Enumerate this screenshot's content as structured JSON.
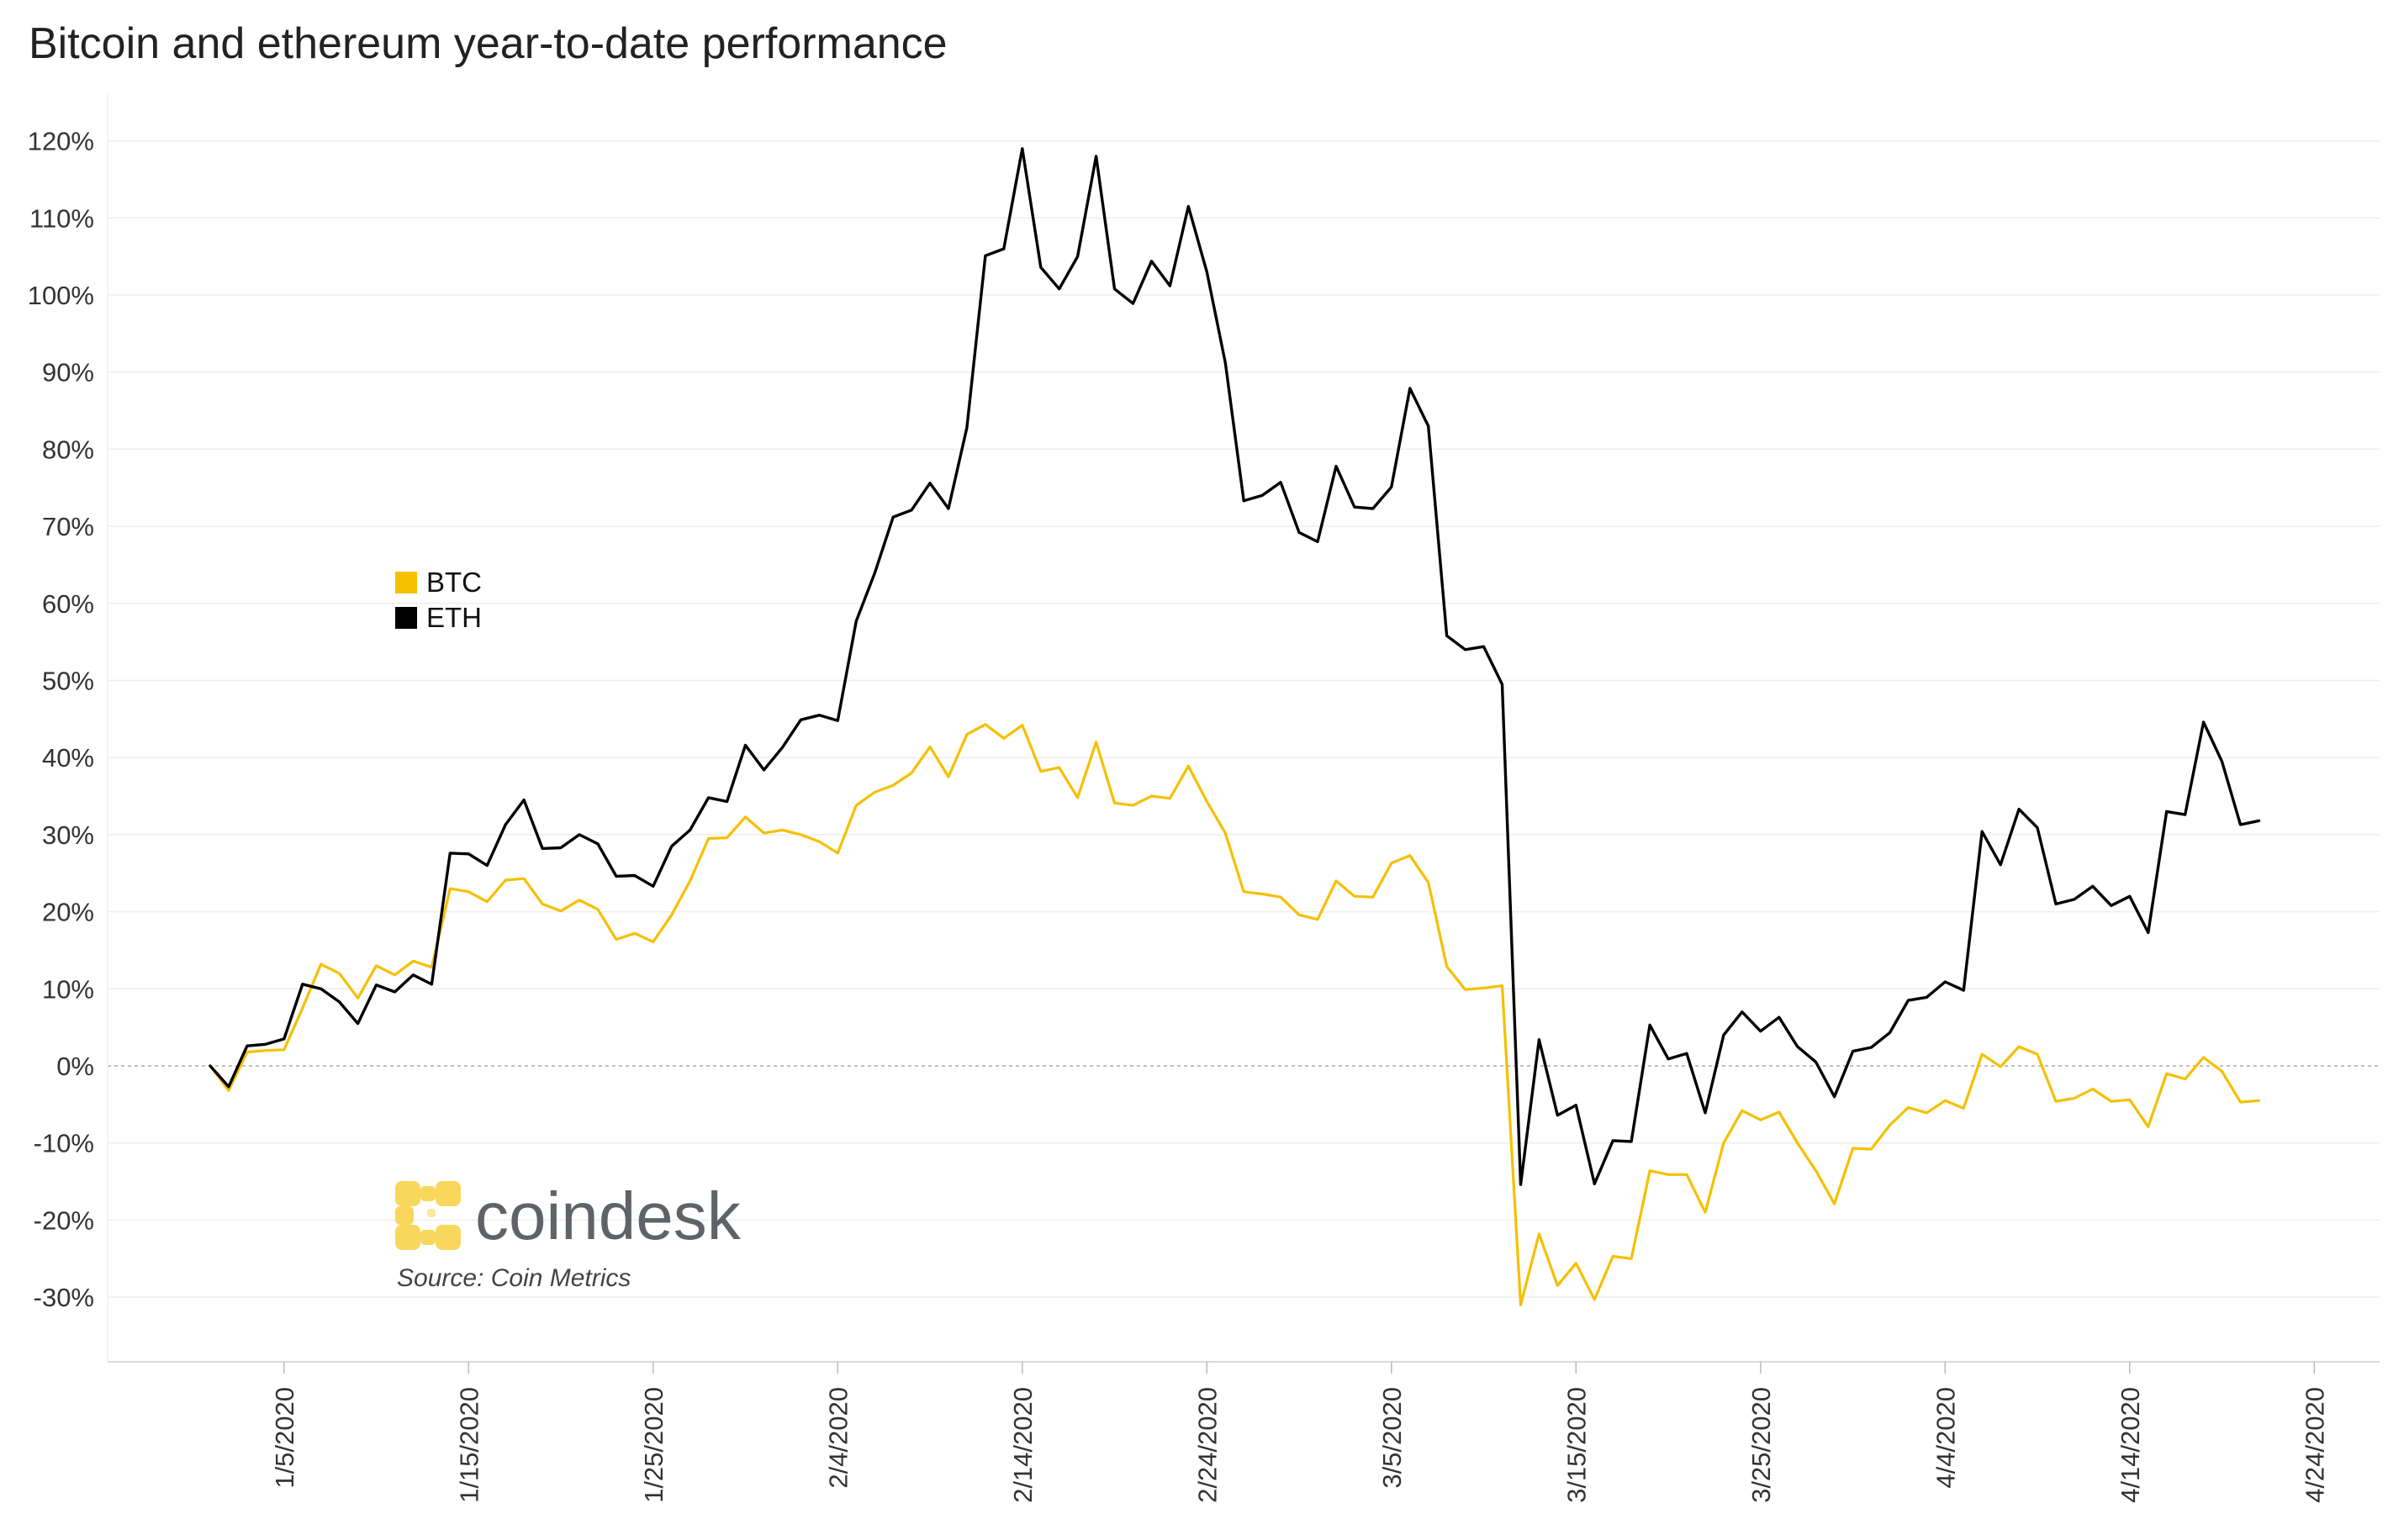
{
  "title": "Bitcoin and ethereum year-to-date performance",
  "logo_text": "coindesk",
  "source_note": "Source: Coin Metrics",
  "colors": {
    "BTC": "#f5c000",
    "ETH": "#000000",
    "grid": "#eeeeee",
    "zero": "#aaaaaa"
  },
  "chart_data": {
    "type": "line",
    "x_start": "1/1/2020",
    "x_tick_labels": [
      "1/5/2020",
      "1/15/2020",
      "1/25/2020",
      "2/4/2020",
      "2/14/2020",
      "2/24/2020",
      "3/5/2020",
      "3/15/2020",
      "3/25/2020",
      "4/4/2020",
      "4/14/2020",
      "4/24/2020"
    ],
    "y_tick_labels": [
      "-30%",
      "-20%",
      "-10%",
      "0%",
      "10%",
      "20%",
      "30%",
      "40%",
      "50%",
      "60%",
      "70%",
      "80%",
      "90%",
      "100%",
      "110%",
      "120%"
    ],
    "ylim": [
      -38,
      128
    ],
    "xlim": [
      "12/28/2019",
      "4/25/2020"
    ],
    "legend": {
      "position": "left-middle"
    },
    "series": [
      {
        "name": "BTC",
        "values": [
          0,
          -3.2,
          1.8,
          2.0,
          2.1,
          7.5,
          13.2,
          12.0,
          8.8,
          13.0,
          11.8,
          13.6,
          12.8,
          23.0,
          22.6,
          21.3,
          24.1,
          24.3,
          21.0,
          20.1,
          21.5,
          20.3,
          16.4,
          17.2,
          16.1,
          19.6,
          24.0,
          29.5,
          29.6,
          32.3,
          30.2,
          30.6,
          30.0,
          29.1,
          27.6,
          33.8,
          35.5,
          36.4,
          38.0,
          41.4,
          37.5,
          43.0,
          44.3,
          42.5,
          44.2,
          38.2,
          38.7,
          34.8,
          42.0,
          34.1,
          33.8,
          35.0,
          34.7,
          38.9,
          34.3,
          30.2,
          22.6,
          22.3,
          21.9,
          19.6,
          19.0,
          24.0,
          22.0,
          21.9,
          26.3,
          27.3,
          23.8,
          12.9,
          9.9,
          10.1,
          10.4,
          -31.0,
          -21.8,
          -28.5,
          -25.6,
          -30.3,
          -24.7,
          -25.0,
          -13.6,
          -14.1,
          -14.1,
          -19.0,
          -10.0,
          -5.8,
          -7.0,
          -6.0,
          -10.0,
          -13.6,
          -17.9,
          -10.7,
          -10.8,
          -7.7,
          -5.4,
          -6.1,
          -4.5,
          -5.5,
          1.5,
          -0.1,
          2.5,
          1.5,
          -4.6,
          -4.2,
          -3.0,
          -4.6,
          -4.4,
          -7.9,
          -1.0,
          -1.7,
          1.1,
          -0.7,
          -4.7,
          -4.5
        ]
      },
      {
        "name": "ETH",
        "values": [
          0,
          -2.7,
          2.6,
          2.8,
          3.5,
          10.6,
          10.0,
          8.3,
          5.5,
          10.5,
          9.6,
          11.8,
          10.6,
          27.6,
          27.5,
          26.0,
          31.3,
          34.5,
          28.2,
          28.3,
          30.0,
          28.8,
          24.6,
          24.7,
          23.3,
          28.5,
          30.6,
          34.8,
          34.3,
          41.6,
          38.4,
          41.3,
          44.9,
          45.5,
          44.8,
          57.7,
          63.9,
          71.2,
          72.1,
          75.6,
          72.3,
          82.8,
          105.1,
          106.0,
          119.0,
          103.6,
          100.8,
          105.0,
          118.0,
          100.8,
          98.9,
          104.4,
          101.2,
          111.5,
          103.0,
          91.2,
          73.3,
          74.0,
          75.7,
          69.2,
          68.0,
          77.8,
          72.5,
          72.3,
          75.1,
          87.9,
          83.0,
          55.8,
          54.0,
          54.4,
          49.5,
          -15.4,
          3.4,
          -6.4,
          -5.1,
          -15.3,
          -9.7,
          -9.8,
          5.3,
          0.9,
          1.6,
          -6.1,
          4.0,
          7.0,
          4.5,
          6.3,
          2.5,
          0.5,
          -4.0,
          1.9,
          2.4,
          4.3,
          8.5,
          8.9,
          10.9,
          9.8,
          30.4,
          26.1,
          33.3,
          30.9,
          21.0,
          21.6,
          23.3,
          20.8,
          22.0,
          17.3,
          33.0,
          32.6,
          44.6,
          39.5,
          31.3,
          31.8
        ]
      }
    ]
  }
}
